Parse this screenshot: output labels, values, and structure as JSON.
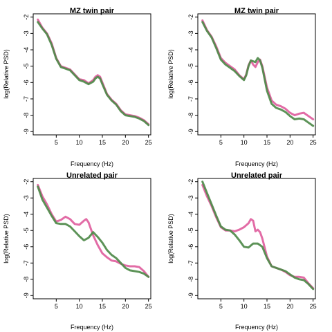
{
  "chart_data": [
    {
      "type": "line",
      "title": "MZ twin pair",
      "xlabel": "Frequency (Hz)",
      "ylabel": "log(Relative PSD)",
      "xlim": [
        0,
        25.5
      ],
      "ylim": [
        -9.2,
        -1.8
      ],
      "xticks": [
        5,
        10,
        15,
        20,
        25
      ],
      "yticks": [
        -2,
        -3,
        -4,
        -5,
        -6,
        -7,
        -8,
        -9
      ],
      "series": [
        {
          "color": "#e0609e",
          "x": [
            1,
            2,
            3,
            4,
            5,
            6,
            7,
            8,
            9,
            10,
            11,
            12,
            13,
            13.5,
            14,
            14.5,
            15,
            16,
            17,
            18,
            19,
            20,
            21,
            22,
            23,
            24,
            25
          ],
          "y": [
            -2.15,
            -2.65,
            -3.0,
            -3.6,
            -4.5,
            -5.0,
            -5.1,
            -5.2,
            -5.5,
            -5.8,
            -5.85,
            -6.05,
            -5.85,
            -5.65,
            -5.55,
            -5.65,
            -6.0,
            -6.7,
            -7.05,
            -7.3,
            -7.7,
            -7.95,
            -8.0,
            -8.05,
            -8.15,
            -8.3,
            -8.55
          ]
        },
        {
          "color": "#4f8a4a",
          "x": [
            1,
            2,
            3,
            4,
            5,
            6,
            7,
            8,
            9,
            10,
            11,
            12,
            13,
            13.5,
            14,
            14.5,
            15,
            16,
            17,
            18,
            19,
            20,
            21,
            22,
            23,
            24,
            25
          ],
          "y": [
            -2.3,
            -2.7,
            -3.05,
            -3.7,
            -4.55,
            -5.05,
            -5.15,
            -5.25,
            -5.55,
            -5.85,
            -5.95,
            -6.1,
            -5.95,
            -5.75,
            -5.65,
            -5.75,
            -6.1,
            -6.75,
            -7.1,
            -7.35,
            -7.75,
            -8.0,
            -8.05,
            -8.1,
            -8.2,
            -8.35,
            -8.6
          ]
        }
      ]
    },
    {
      "type": "line",
      "title": "MZ twin pair",
      "xlabel": "Frequency (Hz)",
      "ylabel": "log(Relative PSD)",
      "xlim": [
        0,
        25.5
      ],
      "ylim": [
        -9.2,
        -1.8
      ],
      "xticks": [
        5,
        10,
        15,
        20,
        25
      ],
      "yticks": [
        -2,
        -3,
        -4,
        -5,
        -6,
        -7,
        -8,
        -9
      ],
      "series": [
        {
          "color": "#e0609e",
          "x": [
            1,
            2,
            3,
            4,
            5,
            6,
            7,
            8,
            9,
            10,
            10.5,
            11,
            11.5,
            12,
            12.5,
            13,
            13.5,
            14,
            15,
            16,
            17,
            18,
            19,
            20,
            21,
            22,
            23,
            24,
            25
          ],
          "y": [
            -2.2,
            -2.8,
            -3.2,
            -3.8,
            -4.5,
            -4.8,
            -5.0,
            -5.2,
            -5.55,
            -5.8,
            -5.5,
            -4.95,
            -4.65,
            -4.9,
            -5.05,
            -4.75,
            -4.6,
            -5.0,
            -6.3,
            -7.1,
            -7.35,
            -7.45,
            -7.6,
            -7.85,
            -8.0,
            -7.9,
            -7.85,
            -8.05,
            -8.25
          ]
        },
        {
          "color": "#4f8a4a",
          "x": [
            1,
            2,
            3,
            4,
            5,
            6,
            7,
            8,
            9,
            10,
            10.5,
            11,
            11.5,
            12,
            12.5,
            13,
            13.5,
            14,
            15,
            16,
            17,
            18,
            19,
            20,
            21,
            22,
            23,
            24,
            25
          ],
          "y": [
            -2.3,
            -2.85,
            -3.25,
            -3.9,
            -4.6,
            -4.9,
            -5.1,
            -5.3,
            -5.6,
            -5.85,
            -5.55,
            -5.0,
            -4.65,
            -4.7,
            -4.75,
            -4.5,
            -4.65,
            -5.1,
            -6.5,
            -7.3,
            -7.55,
            -7.65,
            -7.8,
            -8.05,
            -8.25,
            -8.2,
            -8.25,
            -8.45,
            -8.65
          ]
        }
      ]
    },
    {
      "type": "line",
      "title": "Unrelated pair",
      "xlabel": "Frequency (Hz)",
      "ylabel": "log(Relative PSD)",
      "xlim": [
        0,
        25.5
      ],
      "ylim": [
        -9.2,
        -1.8
      ],
      "xticks": [
        5,
        10,
        15,
        20,
        25
      ],
      "yticks": [
        -2,
        -3,
        -4,
        -5,
        -6,
        -7,
        -8,
        -9
      ],
      "series": [
        {
          "color": "#e0609e",
          "x": [
            1,
            2,
            3,
            4,
            5,
            6,
            7,
            8,
            9,
            10,
            11,
            11.5,
            12,
            13,
            14,
            15,
            16,
            17,
            18,
            19,
            20,
            21,
            22,
            23,
            24,
            25
          ],
          "y": [
            -2.2,
            -2.9,
            -3.4,
            -4.0,
            -4.45,
            -4.35,
            -4.15,
            -4.3,
            -4.6,
            -4.65,
            -4.4,
            -4.3,
            -4.5,
            -5.3,
            -5.9,
            -6.4,
            -6.65,
            -6.85,
            -6.9,
            -7.05,
            -7.15,
            -7.2,
            -7.2,
            -7.25,
            -7.5,
            -7.85
          ]
        },
        {
          "color": "#4f8a4a",
          "x": [
            1,
            2,
            3,
            4,
            5,
            6,
            7,
            8,
            9,
            10,
            11,
            12,
            13,
            14,
            15,
            16,
            17,
            18,
            19,
            20,
            21,
            22,
            23,
            24,
            25
          ],
          "y": [
            -2.3,
            -3.1,
            -3.6,
            -4.1,
            -4.55,
            -4.6,
            -4.6,
            -4.75,
            -5.05,
            -5.35,
            -5.6,
            -5.45,
            -5.1,
            -5.4,
            -5.75,
            -6.2,
            -6.5,
            -6.7,
            -7.0,
            -7.3,
            -7.45,
            -7.5,
            -7.55,
            -7.65,
            -7.85
          ]
        }
      ]
    },
    {
      "type": "line",
      "title": "Unrelated pair",
      "xlabel": "Frequency (Hz)",
      "ylabel": "log(Relative PSD)",
      "xlim": [
        0,
        25.5
      ],
      "ylim": [
        -9.2,
        -1.8
      ],
      "xticks": [
        5,
        10,
        15,
        20,
        25
      ],
      "yticks": [
        -2,
        -3,
        -4,
        -5,
        -6,
        -7,
        -8,
        -9
      ],
      "series": [
        {
          "color": "#e0609e",
          "x": [
            1,
            2,
            3,
            4,
            5,
            6,
            7,
            8,
            9,
            10,
            11,
            11.5,
            12,
            12.5,
            13,
            13.5,
            14,
            15,
            16,
            17,
            18,
            19,
            20,
            21,
            22,
            23,
            24,
            25
          ],
          "y": [
            -2.2,
            -2.9,
            -3.5,
            -4.2,
            -4.8,
            -5.0,
            -5.0,
            -5.05,
            -4.95,
            -4.8,
            -4.55,
            -4.3,
            -4.4,
            -5.05,
            -4.95,
            -5.1,
            -5.5,
            -6.6,
            -7.2,
            -7.3,
            -7.4,
            -7.55,
            -7.75,
            -7.85,
            -7.85,
            -7.9,
            -8.25,
            -8.55
          ]
        },
        {
          "color": "#4f8a4a",
          "x": [
            1,
            2,
            3,
            4,
            5,
            6,
            7,
            8,
            9,
            10,
            11,
            12,
            13,
            14,
            15,
            16,
            17,
            18,
            19,
            20,
            21,
            22,
            23,
            24,
            25
          ],
          "y": [
            -2.0,
            -2.7,
            -3.4,
            -4.1,
            -4.75,
            -4.95,
            -5.0,
            -5.25,
            -5.6,
            -6.0,
            -6.05,
            -5.8,
            -5.8,
            -6.0,
            -6.7,
            -7.2,
            -7.3,
            -7.4,
            -7.5,
            -7.7,
            -7.9,
            -8.0,
            -8.05,
            -8.3,
            -8.6
          ]
        }
      ]
    }
  ]
}
